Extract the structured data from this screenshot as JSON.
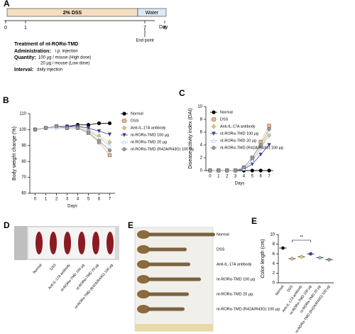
{
  "panel_a": {
    "letter": "A",
    "dss": "2% DSS",
    "water": "Water",
    "days": [
      0,
      1,
      7,
      8
    ],
    "day_unit": "Day",
    "end_point": "End point",
    "treatment": "Treatment of nt-RORα-TMD",
    "administration": {
      "label": "Administration:",
      "text": "i.p. injection"
    },
    "quantity": {
      "label": "Quantity:",
      "high": "100 μg / mouse (High dose)",
      "low": "20 μg / mouse (Low dose)"
    },
    "interval": {
      "label": "Interval:",
      "text": "daily injection"
    }
  },
  "chart_data": [
    {
      "type": "line",
      "panel": "B",
      "ylabel": "Body weight change (%)",
      "xlabel": "Days",
      "x": [
        0,
        1,
        2,
        3,
        4,
        5,
        6,
        7
      ],
      "xlim": [
        -0.5,
        7.5
      ],
      "xticks": [
        0,
        1,
        2,
        3,
        4,
        5,
        6,
        7
      ],
      "ylim": [
        60,
        110
      ],
      "yticks": [
        60,
        70,
        80,
        90,
        100,
        110
      ],
      "legend": "right",
      "series": [
        {
          "name": "Normal",
          "color": "#000000",
          "marker": "circle",
          "values": [
            100,
            101,
            102,
            102,
            103,
            103,
            104,
            104
          ]
        },
        {
          "name": "DSS",
          "color": "#f4b183",
          "marker": "square",
          "values": [
            100,
            101,
            102,
            101,
            101,
            98,
            92,
            84
          ]
        },
        {
          "name": "Anti-IL-17A antibody",
          "color": "#e6d36a",
          "marker": "diamond",
          "values": [
            100,
            101,
            102,
            102,
            102,
            100,
            96,
            92
          ]
        },
        {
          "name": "nt-RORα-TMD 100 μg",
          "color": "#3b3bb3",
          "marker": "triangle-down",
          "values": [
            100,
            101,
            102,
            102,
            102,
            101,
            99,
            97
          ]
        },
        {
          "name": "nt-RORα-TMD 20 μg",
          "color": "#9db8e6",
          "marker": "triangle-up",
          "values": [
            100,
            101,
            101,
            101,
            101,
            99,
            95,
            90
          ]
        },
        {
          "name": "nt-RORα-TMD (R42A/R43G) 100 μg",
          "color": "#9a9a9a",
          "marker": "circle",
          "values": [
            100,
            101,
            102,
            101,
            101,
            98,
            93,
            87
          ]
        }
      ]
    },
    {
      "type": "line",
      "panel": "C",
      "ylabel": "Disease activity index (DAI)",
      "xlabel": "Days",
      "x": [
        0,
        1,
        2,
        3,
        4,
        5,
        6,
        7
      ],
      "xlim": [
        -0.5,
        7.5
      ],
      "xticks": [
        0,
        1,
        2,
        3,
        4,
        5,
        6,
        7
      ],
      "ylim": [
        0,
        10
      ],
      "yticks": [
        0,
        2,
        4,
        6,
        8,
        10
      ],
      "legend": "upper left",
      "series": [
        {
          "name": "Normal",
          "color": "#000000",
          "marker": "circle",
          "values": [
            0,
            0,
            0,
            0,
            0,
            0,
            0,
            0
          ]
        },
        {
          "name": "DSS",
          "color": "#f4b183",
          "marker": "square",
          "values": [
            0,
            0,
            0,
            0,
            0.5,
            2,
            4.5,
            7
          ]
        },
        {
          "name": "Anti-IL-17A antibody",
          "color": "#e6d36a",
          "marker": "diamond",
          "values": [
            0,
            0,
            0,
            0,
            0.3,
            1.5,
            3.5,
            5.5
          ]
        },
        {
          "name": "nt-RORα-TMD 100 μg",
          "color": "#3b3bb3",
          "marker": "triangle-down",
          "values": [
            0,
            0,
            0,
            0,
            0.2,
            1,
            2.5,
            4
          ]
        },
        {
          "name": "nt-RORα-TMD 20 μg",
          "color": "#9db8e6",
          "marker": "triangle-up",
          "values": [
            0,
            0,
            0,
            0,
            0.3,
            1.5,
            3.5,
            6
          ]
        },
        {
          "name": "nt-RORα-TMD (R42A/R43G) 100 μg",
          "color": "#9a9a9a",
          "marker": "circle",
          "values": [
            0,
            0,
            0,
            0,
            0.5,
            2,
            4,
            6.5
          ]
        }
      ]
    },
    {
      "type": "dot",
      "panel": "E",
      "ylabel": "Colon length (cm)",
      "categories": [
        "Normal",
        "DSS",
        "Anti-IL-17A antibody",
        "nt-RORα-TMD 100 μg",
        "nt-RORα-TMD 20 μg",
        "nt-RORα-TMD (R42A/R43G) 100 μg"
      ],
      "values": [
        7.2,
        5.0,
        5.4,
        6.0,
        5.2,
        4.8
      ],
      "colors": [
        "#000000",
        "#f4b183",
        "#e6d36a",
        "#3b3bb3",
        "#9db8e6",
        "#9a9a9a"
      ],
      "ylim": [
        0,
        10
      ],
      "yticks": [
        0,
        2,
        4,
        6,
        8,
        10
      ],
      "annotation": "**"
    }
  ],
  "panel_d": {
    "letter": "D",
    "labels": [
      "Normal",
      "DSS",
      "Anti-IL-17A antibody",
      "nt-RORα-TMD 100 μg",
      "nt-RORα-TMD 20 μg",
      "nt-RORα-TMD (R42A/R43G) 100 μg"
    ]
  },
  "panel_e": {
    "letter": "E",
    "labels": [
      "Normal",
      "DSS",
      "Anti-IL-17A antibody",
      "nt-RORα-TMD 100 μg",
      "nt-RORα-TMD 20 μg",
      "nt-RORα-TMD (R42A/R43G) 100 μg"
    ]
  }
}
